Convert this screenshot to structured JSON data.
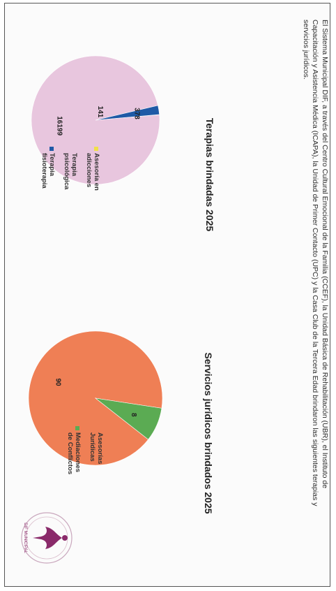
{
  "intro_text": "El Sistema Municipal DIF, a través del Centro Cultural Emocional de la Familia (CCEF), la Unidad Básica de Rehabilitación (UBR), el Instituto de Capacitación y Asistencia Médica (ICAPA), la Unidad de Primer Contacto (UPC) y la Casa Club de la Tercera Edad brindaron las siguientes terapias y servicios jurídicos.",
  "colors": {
    "pink": "#e8c6de",
    "yellow": "#f0e04a",
    "blue": "#1f5aa6",
    "orange": "#ef7f55",
    "green": "#5bab53",
    "logo": "#8a2a6a"
  },
  "chart_data": [
    {
      "type": "pie",
      "title": "Terapias brindadas 2025",
      "series": [
        {
          "name": "Asesoría en adicciones",
          "value": 11,
          "label": ""
        },
        {
          "name": "Terapia psicológica",
          "value": 16199,
          "label": "16199"
        },
        {
          "name": "Terapia fisioterapia",
          "value": 378,
          "label": "378"
        }
      ],
      "inner_label": "141"
    },
    {
      "type": "pie",
      "title": "Servicios jurídicos brindados 2025",
      "series": [
        {
          "name": "Asesorías Jurídicas",
          "value": 90,
          "label": "90"
        },
        {
          "name": "Mediaciones de Conflictos",
          "value": 8,
          "label": "8"
        }
      ]
    }
  ],
  "logo_text": "DIF MUNICIPAL"
}
